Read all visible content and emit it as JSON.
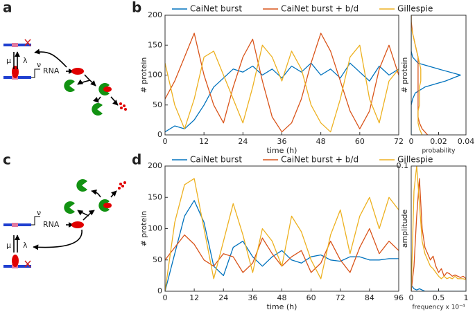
{
  "panel_labels": [
    "a",
    "b",
    "c",
    "d"
  ],
  "diagram_a": {
    "mu": "μ",
    "lambda": "λ",
    "nu": "ν",
    "rna": "RNA"
  },
  "diagram_c": {
    "mu": "μ",
    "lambda": "λ",
    "nu": "ν",
    "rna": "RNA"
  },
  "chart_data": [
    {
      "type": "line",
      "xlabel": "time (h)",
      "ylabel": "# protein",
      "x": [
        0,
        3,
        6,
        9,
        12,
        15,
        18,
        21,
        24,
        27,
        30,
        33,
        36,
        39,
        42,
        45,
        48,
        51,
        54,
        57,
        60,
        63,
        66,
        69,
        72
      ],
      "xlim": [
        0,
        72
      ],
      "xticks": [
        0,
        12,
        24,
        36,
        48,
        60,
        72
      ],
      "ylim": [
        0,
        200
      ],
      "yticks": [
        0,
        50,
        100,
        150,
        200
      ],
      "legend": "top",
      "series": [
        {
          "name": "CaiNet burst",
          "color": "#0072bd",
          "values": [
            5,
            15,
            10,
            25,
            50,
            80,
            95,
            110,
            105,
            115,
            100,
            110,
            95,
            115,
            105,
            120,
            100,
            110,
            95,
            120,
            105,
            90,
            115,
            100,
            110
          ]
        },
        {
          "name": "CaiNet burst + b/d",
          "color": "#d95319",
          "values": [
            60,
            90,
            130,
            170,
            100,
            50,
            20,
            80,
            130,
            160,
            90,
            30,
            5,
            20,
            60,
            120,
            170,
            140,
            90,
            40,
            10,
            40,
            110,
            150,
            100
          ]
        },
        {
          "name": "Gillespie",
          "color": "#edb120",
          "values": [
            120,
            50,
            10,
            60,
            130,
            140,
            100,
            60,
            20,
            80,
            150,
            130,
            90,
            140,
            110,
            50,
            20,
            5,
            60,
            130,
            150,
            60,
            20,
            90,
            110
          ]
        }
      ]
    },
    {
      "type": "line",
      "orientation": "horizontal",
      "xlabel": "probability",
      "ylabel": "# protein",
      "y": [
        0,
        10,
        20,
        30,
        40,
        50,
        60,
        70,
        80,
        90,
        100,
        110,
        120,
        130,
        140,
        150,
        160,
        170,
        180,
        190,
        200
      ],
      "xlim": [
        0,
        0.04
      ],
      "xticks": [
        0,
        0.02,
        0.04
      ],
      "ylim": [
        0,
        200
      ],
      "series": [
        {
          "color": "#0072bd",
          "values": [
            0,
            0,
            0,
            0,
            0,
            0,
            0.001,
            0.003,
            0.01,
            0.025,
            0.036,
            0.02,
            0.005,
            0.001,
            0,
            0,
            0,
            0,
            0,
            0,
            0
          ]
        },
        {
          "color": "#d95319",
          "values": [
            0.012,
            0.008,
            0.006,
            0.005,
            0.005,
            0.005,
            0.005,
            0.005,
            0.005,
            0.005,
            0.005,
            0.005,
            0.005,
            0.005,
            0.004,
            0.003,
            0.002,
            0.001,
            0.0005,
            0,
            0
          ]
        },
        {
          "color": "#edb120",
          "values": [
            0.008,
            0.006,
            0.005,
            0.005,
            0.005,
            0.006,
            0.006,
            0.006,
            0.006,
            0.007,
            0.007,
            0.007,
            0.006,
            0.005,
            0.004,
            0.003,
            0.002,
            0.001,
            0,
            0,
            0
          ]
        }
      ]
    },
    {
      "type": "line",
      "xlabel": "time (h)",
      "ylabel": "# protein",
      "x": [
        0,
        4,
        8,
        12,
        16,
        20,
        24,
        28,
        32,
        36,
        40,
        44,
        48,
        52,
        56,
        60,
        64,
        68,
        72,
        76,
        80,
        84,
        88,
        92,
        96
      ],
      "xlim": [
        0,
        96
      ],
      "xticks": [
        0,
        12,
        24,
        36,
        48,
        60,
        72,
        84,
        96
      ],
      "ylim": [
        0,
        200
      ],
      "yticks": [
        0,
        50,
        100,
        150,
        200
      ],
      "legend": "top",
      "series": [
        {
          "name": "CaiNet burst",
          "color": "#0072bd",
          "values": [
            0,
            60,
            120,
            145,
            110,
            40,
            25,
            70,
            80,
            55,
            40,
            55,
            65,
            50,
            45,
            55,
            58,
            50,
            48,
            55,
            55,
            50,
            50,
            52,
            52
          ]
        },
        {
          "name": "CaiNet burst + b/d",
          "color": "#d95319",
          "values": [
            50,
            70,
            90,
            75,
            50,
            40,
            60,
            55,
            30,
            45,
            85,
            60,
            40,
            55,
            65,
            30,
            45,
            80,
            50,
            30,
            70,
            100,
            60,
            80,
            65
          ]
        },
        {
          "name": "Gillespie",
          "color": "#edb120",
          "values": [
            0,
            110,
            170,
            180,
            100,
            20,
            80,
            140,
            90,
            30,
            100,
            80,
            40,
            120,
            95,
            50,
            20,
            90,
            130,
            60,
            120,
            150,
            100,
            150,
            130
          ]
        }
      ]
    },
    {
      "type": "line",
      "xlabel": "frequency x 10⁻⁴",
      "ylabel": "amplitude",
      "x": [
        0,
        0.05,
        0.1,
        0.15,
        0.2,
        0.25,
        0.3,
        0.35,
        0.4,
        0.45,
        0.5,
        0.55,
        0.6,
        0.65,
        0.7,
        0.75,
        0.8,
        0.85,
        0.9,
        0.95,
        1
      ],
      "xlim": [
        0,
        1
      ],
      "xticks": [
        0,
        0.5,
        1
      ],
      "ylim": [
        0,
        0.1
      ],
      "yticks": [
        0.1
      ],
      "series": [
        {
          "color": "#0072bd",
          "values": [
            0.005,
            0.002,
            0.001,
            0.002,
            0.001,
            0,
            0,
            0,
            0,
            0,
            0,
            0,
            0,
            0,
            0,
            0,
            0,
            0,
            0,
            0,
            0
          ]
        },
        {
          "color": "#d95319",
          "values": [
            0,
            0.02,
            0.06,
            0.09,
            0.05,
            0.035,
            0.03,
            0.025,
            0.028,
            0.02,
            0.015,
            0.018,
            0.012,
            0.015,
            0.014,
            0.012,
            0.013,
            0.012,
            0.011,
            0.012,
            0.01
          ]
        },
        {
          "color": "#edb120",
          "values": [
            0,
            0.08,
            0.1,
            0.07,
            0.04,
            0.03,
            0.025,
            0.02,
            0.018,
            0.015,
            0.012,
            0.01,
            0.012,
            0.01,
            0.011,
            0.01,
            0.012,
            0.01,
            0.01,
            0.01,
            0.009
          ]
        }
      ]
    }
  ]
}
